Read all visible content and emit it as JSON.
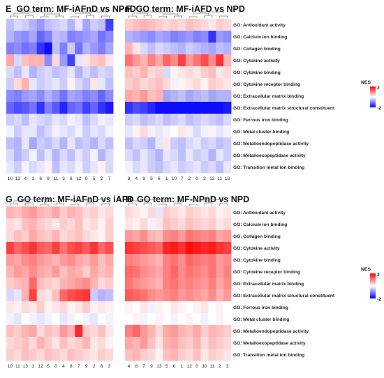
{
  "legend": {
    "title": "NES",
    "max_label": "2",
    "min_label": "-2",
    "min": -2,
    "max": 2,
    "colors": [
      "#0000ff",
      "#ffffff",
      "#ff0000"
    ]
  },
  "chart_data": [
    {
      "type": "heatmap",
      "letter": "E",
      "title": "GO term: MF-iAFnD vs NPnD",
      "row_labels_shown": false,
      "rows": [
        "GO: Antioxidant activity",
        "GO: Calcium ion binding",
        "GO: Collagen binding",
        "GO: Cytokine activity",
        "GO: Cytokine binding",
        "GO: Cytokine receptor binding",
        "GO: Extracellular matrix binding",
        "GO:  Extracellular matrix structural constituent",
        "GO: Ferrous iron binding",
        "GO: Metal cluster binding",
        "GO: Metalloendopeptidase activity",
        "GO: Metalloexopeptidase activity",
        "GO: Transition metal ion binding"
      ],
      "columns": [
        "10",
        "13",
        "4",
        "1",
        "6",
        "9",
        "11",
        "3",
        "8",
        "12",
        "0",
        "5",
        "2",
        "7"
      ],
      "values": [
        [
          -0.5,
          -0.3,
          -0.4,
          -0.6,
          -0.8,
          -0.5,
          -0.4,
          -0.3,
          -0.6,
          -0.2,
          -0.7,
          -0.4,
          -0.5,
          -1.5
        ],
        [
          -0.6,
          -0.8,
          -0.9,
          -0.7,
          -1.2,
          -1.0,
          -0.5,
          -0.6,
          -1.0,
          -0.9,
          -0.8,
          -0.7,
          -1.1,
          -0.9
        ],
        [
          -1.0,
          -0.9,
          -1.1,
          -1.0,
          -1.6,
          -1.9,
          -0.5,
          -1.0,
          -0.4,
          -1.1,
          -0.6,
          -0.8,
          -1.0,
          -0.7
        ],
        [
          0.7,
          -0.3,
          0.5,
          0.6,
          0.6,
          -0.9,
          0.3,
          -0.8,
          -1.5,
          -0.2,
          0.2,
          0.4,
          0.5,
          0.2
        ],
        [
          -0.3,
          -0.5,
          -0.2,
          -0.6,
          -0.4,
          -0.3,
          -0.5,
          -0.4,
          -0.2,
          -0.6,
          -0.3,
          -0.5,
          -0.3,
          -0.4
        ],
        [
          -0.4,
          0.3,
          0.6,
          -0.2,
          -0.4,
          -0.3,
          -0.2,
          -0.4,
          0.1,
          -0.3,
          -0.5,
          0.2,
          -0.2,
          -0.5
        ],
        [
          -0.9,
          -1.0,
          -0.8,
          -0.7,
          -0.9,
          -0.6,
          -0.8,
          -1.1,
          -0.7,
          -0.8,
          -1.0,
          -0.9,
          -1.2,
          -0.9
        ],
        [
          -1.2,
          -1.4,
          -1.3,
          -1.1,
          -1.6,
          -1.0,
          -1.3,
          -1.7,
          -1.2,
          -1.1,
          -1.5,
          -1.2,
          -1.6,
          -1.8
        ],
        [
          -0.4,
          -0.3,
          -0.5,
          -0.2,
          -0.3,
          -0.4,
          -0.2,
          -0.3,
          -0.1,
          -0.2,
          -0.5,
          -0.3,
          -0.1,
          -0.2
        ],
        [
          -0.1,
          -0.4,
          -0.2,
          -0.2,
          -0.5,
          -0.3,
          -0.1,
          -0.2,
          -0.3,
          -0.1,
          -0.4,
          -0.2,
          -0.3,
          -0.1
        ],
        [
          -0.5,
          -0.6,
          -0.2,
          -0.7,
          -0.4,
          -0.5,
          -0.3,
          -0.6,
          -0.2,
          -0.5,
          -0.4,
          -0.6,
          -0.3,
          -0.5
        ],
        [
          -0.3,
          -0.6,
          -0.4,
          -0.1,
          -0.5,
          -0.2,
          -0.6,
          -0.3,
          -0.5,
          -0.2,
          -0.4,
          -0.1,
          -0.6,
          -0.3
        ],
        [
          -0.2,
          -0.4,
          -0.1,
          -0.3,
          -0.2,
          0.1,
          -0.5,
          -0.2,
          -0.3,
          -0.1,
          -0.4,
          -0.2,
          0.1,
          -0.3
        ]
      ]
    },
    {
      "type": "heatmap",
      "letter": "F",
      "title": "GO term: MF-iAFD vs NPD",
      "row_labels_shown": true,
      "rows": [
        "GO: Antioxidant activity",
        "GO: Calcium ion binding",
        "GO: Collagen binding",
        "GO: Cytokine activity",
        "GO: Cytokine binding",
        "GO: Cytokine receptor binding",
        "GO: Extracellular matrix binding",
        "GO:  Extracellular matrix structural constituent",
        "GO: Ferrous iron binding",
        "GO: Metal cluster binding",
        "GO: Metalloendopeptidase activity",
        "GO: Metalloexopeptidase activity",
        "GO: Transition metal ion binding"
      ],
      "columns": [
        "8",
        "4",
        "9",
        "5",
        "6",
        "1",
        "10",
        "7",
        "2",
        "0",
        "3",
        "12",
        "11",
        "13"
      ],
      "values": [
        [
          0.4,
          0.5,
          0.6,
          0.5,
          0.4,
          0.3,
          0.4,
          0.3,
          0.5,
          0.4,
          0.3,
          0.2,
          0.4,
          0.3
        ],
        [
          -0.6,
          -0.7,
          -0.8,
          -0.9,
          -0.7,
          -0.8,
          -1.0,
          -0.9,
          -0.8,
          -1.0,
          -0.9,
          -1.6,
          -0.8,
          -0.9
        ],
        [
          0.6,
          0.2,
          -0.3,
          -0.5,
          -0.3,
          -0.4,
          -0.5,
          -0.6,
          -0.4,
          -0.5,
          -0.6,
          -0.7,
          -0.5,
          -0.6
        ],
        [
          1.1,
          0.8,
          0.6,
          1.0,
          0.7,
          1.2,
          0.9,
          1.5,
          0.8,
          1.1,
          1.4,
          0.9,
          1.6,
          0.6
        ],
        [
          0.5,
          0.4,
          0.6,
          0.3,
          0.4,
          -0.3,
          0.1,
          0.2,
          0.3,
          0.2,
          0.4,
          0.5,
          0.2,
          0.3
        ],
        [
          0.4,
          0.5,
          0.3,
          0.4,
          0.5,
          0.3,
          -0.1,
          0.1,
          0.2,
          0.3,
          0.1,
          0.4,
          0.3,
          0.2
        ],
        [
          0.7,
          0.6,
          0.8,
          0.5,
          0.6,
          -0.7,
          -0.6,
          -0.5,
          -0.7,
          -0.6,
          -0.5,
          -0.7,
          -0.6,
          -0.6
        ],
        [
          -1.6,
          -1.4,
          -1.5,
          -1.7,
          -1.9,
          -1.9,
          -1.9,
          -1.9,
          -1.9,
          -1.9,
          -1.9,
          -1.9,
          -1.9,
          -1.8
        ],
        [
          -0.4,
          -0.3,
          -0.5,
          -0.4,
          -0.3,
          -0.5,
          -0.4,
          -0.3,
          -0.5,
          -0.4,
          -0.3,
          -0.4,
          -0.5,
          -0.3
        ],
        [
          -0.2,
          0.1,
          0.3,
          -0.1,
          -0.2,
          -0.1,
          0.0,
          0.2,
          -0.1,
          -0.3,
          -0.1,
          0.1,
          -0.2,
          -0.1
        ],
        [
          -0.5,
          -0.3,
          -0.4,
          -0.6,
          -0.2,
          0.2,
          -0.4,
          -0.5,
          -0.3,
          -0.2,
          -0.4,
          -0.3,
          -0.5,
          -0.4
        ],
        [
          -0.3,
          -0.5,
          -0.2,
          -0.4,
          -0.6,
          -0.2,
          -0.3,
          -0.5,
          -0.2,
          -0.4,
          -0.3,
          -0.6,
          -0.2,
          -0.4
        ],
        [
          -0.1,
          -0.3,
          -0.2,
          -0.4,
          -0.5,
          -0.3,
          -0.2,
          -0.4,
          -0.3,
          -0.2,
          -0.4,
          -0.3,
          -0.5,
          -0.2
        ]
      ]
    },
    {
      "type": "heatmap",
      "letter": "G",
      "title": "GO term: MF-iAFnD vs iAFD",
      "row_labels_shown": false,
      "rows": [
        "GO: Antioxidant activity",
        "GO: Calcium ion binding",
        "GO: Collagen binding",
        "GO: Cytokine activity",
        "GO: Cytokine binding",
        "GO: Cytokine receptor binding",
        "GO: Extracellular matrix binding",
        "GO:  Extracellular matrix structural constituent",
        "GO: Ferrous iron binding",
        "GO: Metal cluster binding",
        "GO: Metalloendopeptidase activity",
        "GO: Metalloexopeptidase activity",
        "GO: Transition metal ion binding"
      ],
      "columns": [
        "10",
        "11",
        "13",
        "1",
        "12",
        "5",
        "0",
        "4",
        "8",
        "7",
        "9",
        "2",
        "6",
        "3"
      ],
      "values": [
        [
          0.6,
          0.5,
          0.7,
          0.8,
          0.6,
          0.5,
          0.7,
          0.4,
          0.6,
          0.5,
          0.3,
          0.4,
          0.2,
          0.3
        ],
        [
          0.3,
          0.2,
          0.5,
          0.6,
          0.4,
          0.3,
          0.2,
          0.4,
          0.3,
          0.5,
          0.2,
          0.3,
          0.1,
          0.4
        ],
        [
          0.3,
          0.5,
          0.4,
          0.7,
          0.5,
          0.4,
          0.6,
          0.3,
          0.4,
          0.5,
          0.3,
          0.2,
          0.1,
          0.4
        ],
        [
          1.5,
          1.2,
          1.4,
          1.6,
          1.3,
          1.2,
          1.5,
          1.1,
          1.4,
          1.5,
          1.3,
          1.6,
          1.2,
          1.4
        ],
        [
          0.8,
          0.7,
          0.9,
          1.0,
          0.8,
          0.7,
          0.6,
          0.8,
          0.9,
          0.7,
          0.6,
          0.8,
          0.5,
          0.7
        ],
        [
          0.6,
          0.8,
          0.7,
          0.9,
          0.7,
          0.6,
          0.8,
          0.5,
          0.7,
          0.6,
          0.4,
          0.7,
          0.5,
          0.6
        ],
        [
          0.4,
          0.5,
          0.6,
          1.2,
          0.5,
          0.4,
          0.3,
          0.6,
          0.7,
          0.8,
          0.9,
          0.6,
          0.3,
          0.4
        ],
        [
          -0.3,
          -0.2,
          0.6,
          1.5,
          0.3,
          0.2,
          0.5,
          1.2,
          1.4,
          1.5,
          1.6,
          -0.4,
          -0.6,
          -0.5
        ],
        [
          0.2,
          0.1,
          0.3,
          0.2,
          0.4,
          0.1,
          0.2,
          0.3,
          0.1,
          0.2,
          0.4,
          0.1,
          0.2,
          0.1
        ],
        [
          -0.1,
          -0.2,
          0.0,
          -0.1,
          -0.2,
          -0.1,
          0.0,
          -0.2,
          -0.1,
          0.0,
          -0.1,
          -0.2,
          0.0,
          -0.1
        ],
        [
          0.5,
          0.4,
          0.6,
          0.7,
          0.3,
          0.5,
          0.4,
          0.8,
          0.6,
          1.7,
          0.4,
          0.3,
          0.5,
          0.2
        ],
        [
          0.3,
          0.4,
          0.5,
          0.3,
          0.6,
          0.4,
          0.2,
          0.5,
          0.3,
          0.4,
          0.6,
          0.2,
          0.3,
          0.1
        ],
        [
          0.4,
          0.3,
          0.5,
          0.4,
          0.3,
          0.5,
          0.4,
          0.3,
          0.5,
          0.4,
          0.3,
          0.2,
          0.4,
          0.3
        ]
      ]
    },
    {
      "type": "heatmap",
      "letter": "H",
      "title": "GO term: MF-NPnD vs NPD",
      "row_labels_shown": true,
      "rows": [
        "GO: Antioxidant activity",
        "GO: Calcium ion binding",
        "GO: Collagen binding",
        "GO: Cytokine activity",
        "GO: Cytokine binding",
        "GO: Cytokine receptor binding",
        "GO: Extracellular matrix binding",
        "GO:  Extracellular matrix structural constituent",
        "GO: Ferrous iron binding",
        "GO: Metal cluster binding",
        "GO: Metalloendopeptidase activity",
        "GO: Metalloexopeptidase activity",
        "GO: Transition metal ion binding"
      ],
      "columns": [
        "4",
        "8",
        "7",
        "9",
        "13",
        "5",
        "6",
        "1",
        "12",
        "0",
        "10",
        "11",
        "2",
        "3"
      ],
      "values": [
        [
          0.3,
          0.2,
          0.1,
          0.3,
          -0.2,
          0.4,
          0.3,
          0.2,
          0.4,
          0.3,
          0.2,
          0.3,
          0.1,
          0.2
        ],
        [
          0.2,
          0.1,
          0.3,
          -0.1,
          0.2,
          0.5,
          0.4,
          0.3,
          0.5,
          0.4,
          0.3,
          0.4,
          0.2,
          0.3
        ],
        [
          0.8,
          0.7,
          0.9,
          0.6,
          0.5,
          0.9,
          1.0,
          0.8,
          1.1,
          1.0,
          0.9,
          1.0,
          0.7,
          0.8
        ],
        [
          1.6,
          1.5,
          1.4,
          1.3,
          1.2,
          1.7,
          1.8,
          1.6,
          1.9,
          1.8,
          1.7,
          1.8,
          1.6,
          1.5
        ],
        [
          1.0,
          0.9,
          0.8,
          0.7,
          0.6,
          1.0,
          1.1,
          0.9,
          1.2,
          1.1,
          1.0,
          1.1,
          0.8,
          0.9
        ],
        [
          1.2,
          1.1,
          0.9,
          0.8,
          0.7,
          1.0,
          1.2,
          0.9,
          1.1,
          1.0,
          0.9,
          1.1,
          0.8,
          1.0
        ],
        [
          1.1,
          0.9,
          0.8,
          0.7,
          0.6,
          1.0,
          1.1,
          0.9,
          1.0,
          0.9,
          0.8,
          1.0,
          0.7,
          0.9
        ],
        [
          1.3,
          1.2,
          1.1,
          0.9,
          0.8,
          0.9,
          1.0,
          0.8,
          0.9,
          0.8,
          0.7,
          0.9,
          0.6,
          0.8
        ],
        [
          0.1,
          0.0,
          0.2,
          -0.1,
          0.1,
          0.0,
          0.2,
          0.1,
          0.0,
          0.1,
          0.2,
          0.0,
          0.1,
          0.0
        ],
        [
          0.0,
          0.1,
          -0.1,
          0.0,
          0.1,
          0.0,
          -0.1,
          0.0,
          0.1,
          0.0,
          -0.1,
          0.0,
          0.1,
          0.0
        ],
        [
          1.0,
          1.2,
          0.8,
          0.6,
          0.3,
          0.7,
          0.8,
          0.6,
          0.5,
          0.7,
          0.4,
          0.6,
          0.5,
          0.4
        ],
        [
          0.7,
          0.6,
          0.8,
          0.5,
          0.2,
          0.6,
          0.7,
          0.5,
          0.4,
          0.6,
          0.3,
          0.5,
          0.4,
          0.3
        ],
        [
          0.5,
          0.6,
          0.4,
          0.3,
          0.1,
          0.5,
          0.6,
          0.4,
          0.3,
          0.5,
          0.2,
          0.4,
          0.3,
          0.2
        ]
      ]
    }
  ]
}
